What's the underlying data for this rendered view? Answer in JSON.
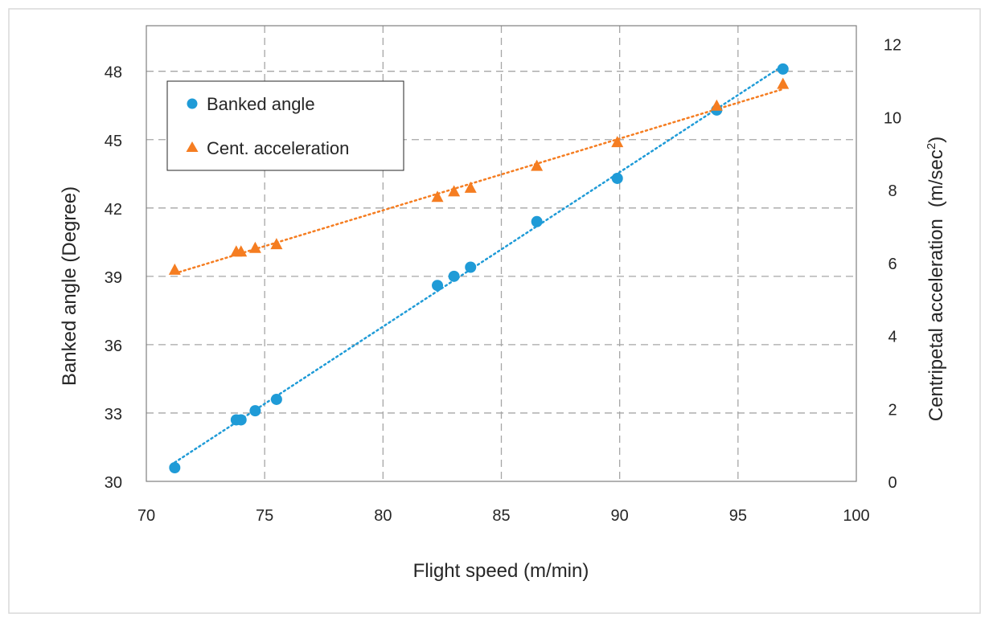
{
  "chart_data": {
    "type": "scatter",
    "xlabel": "Flight speed (m/min)",
    "ylabel": "Banked angle (Degree)",
    "y2label": "Centripetal acceleration",
    "y2label_unit": "(m/sec",
    "y2label_sup": "2",
    "y2label_close": ")",
    "xlim": [
      70,
      100
    ],
    "xticks": [
      70,
      75,
      80,
      85,
      90,
      95,
      100
    ],
    "ylim": [
      30,
      50
    ],
    "yticks": [
      30,
      33,
      36,
      39,
      42,
      45,
      48
    ],
    "y2lim": [
      0,
      12.5
    ],
    "y2ticks": [
      0,
      2,
      4,
      6,
      8,
      10,
      12
    ],
    "grid": true,
    "legend_position": "top-left",
    "series": [
      {
        "name": "Banked angle",
        "axis": "left",
        "marker": "circle",
        "color": "#1f9bd7",
        "trendline": "linear",
        "points": [
          {
            "x": 71.2,
            "y": 30.6
          },
          {
            "x": 73.8,
            "y": 32.7
          },
          {
            "x": 74.0,
            "y": 32.7
          },
          {
            "x": 74.6,
            "y": 33.1
          },
          {
            "x": 75.5,
            "y": 33.6
          },
          {
            "x": 82.3,
            "y": 38.6
          },
          {
            "x": 83.0,
            "y": 39.0
          },
          {
            "x": 83.7,
            "y": 39.4
          },
          {
            "x": 86.5,
            "y": 41.4
          },
          {
            "x": 89.9,
            "y": 43.3
          },
          {
            "x": 94.1,
            "y": 46.3
          },
          {
            "x": 96.9,
            "y": 48.1
          }
        ]
      },
      {
        "name": "Cent. acceleration",
        "axis": "right",
        "marker": "triangle",
        "color": "#f57d21",
        "trendline": "linear",
        "points": [
          {
            "x": 71.2,
            "y": 5.8
          },
          {
            "x": 73.8,
            "y": 6.3
          },
          {
            "x": 74.0,
            "y": 6.3
          },
          {
            "x": 74.6,
            "y": 6.4
          },
          {
            "x": 75.5,
            "y": 6.5
          },
          {
            "x": 82.3,
            "y": 7.8
          },
          {
            "x": 83.0,
            "y": 7.95
          },
          {
            "x": 83.7,
            "y": 8.05
          },
          {
            "x": 86.5,
            "y": 8.65
          },
          {
            "x": 89.9,
            "y": 9.3
          },
          {
            "x": 94.1,
            "y": 10.3
          },
          {
            "x": 96.9,
            "y": 10.9
          }
        ]
      }
    ]
  }
}
